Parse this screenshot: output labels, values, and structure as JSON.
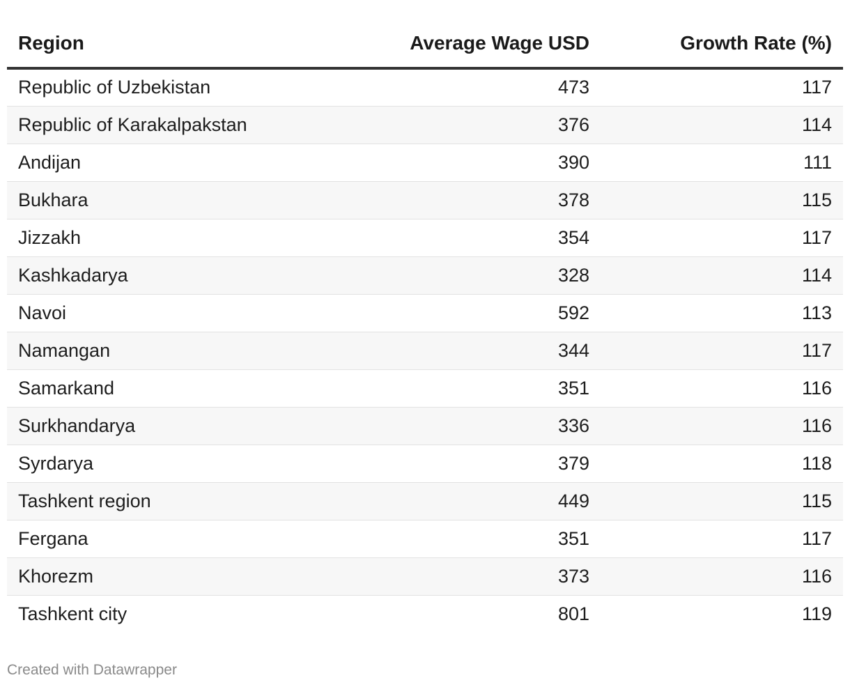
{
  "chart_data": {
    "type": "table",
    "columns": [
      "Region",
      "Average Wage USD",
      "Growth Rate (%)"
    ],
    "rows": [
      [
        "Republic of Uzbekistan",
        "473",
        "117"
      ],
      [
        "Republic of Karakalpakstan",
        "376",
        "114"
      ],
      [
        "Andijan",
        "390",
        "111"
      ],
      [
        "Bukhara",
        "378",
        "115"
      ],
      [
        "Jizzakh",
        "354",
        "117"
      ],
      [
        "Kashkadarya",
        "328",
        "114"
      ],
      [
        "Navoi",
        "592",
        "113"
      ],
      [
        "Namangan",
        "344",
        "117"
      ],
      [
        "Samarkand",
        "351",
        "116"
      ],
      [
        "Surkhandarya",
        "336",
        "116"
      ],
      [
        "Syrdarya",
        "379",
        "118"
      ],
      [
        "Tashkent region",
        "449",
        "115"
      ],
      [
        "Fergana",
        "351",
        "117"
      ],
      [
        "Khorezm",
        "373",
        "116"
      ],
      [
        "Tashkent city",
        "801",
        "119"
      ]
    ]
  },
  "footer": {
    "credit": "Created with Datawrapper"
  }
}
